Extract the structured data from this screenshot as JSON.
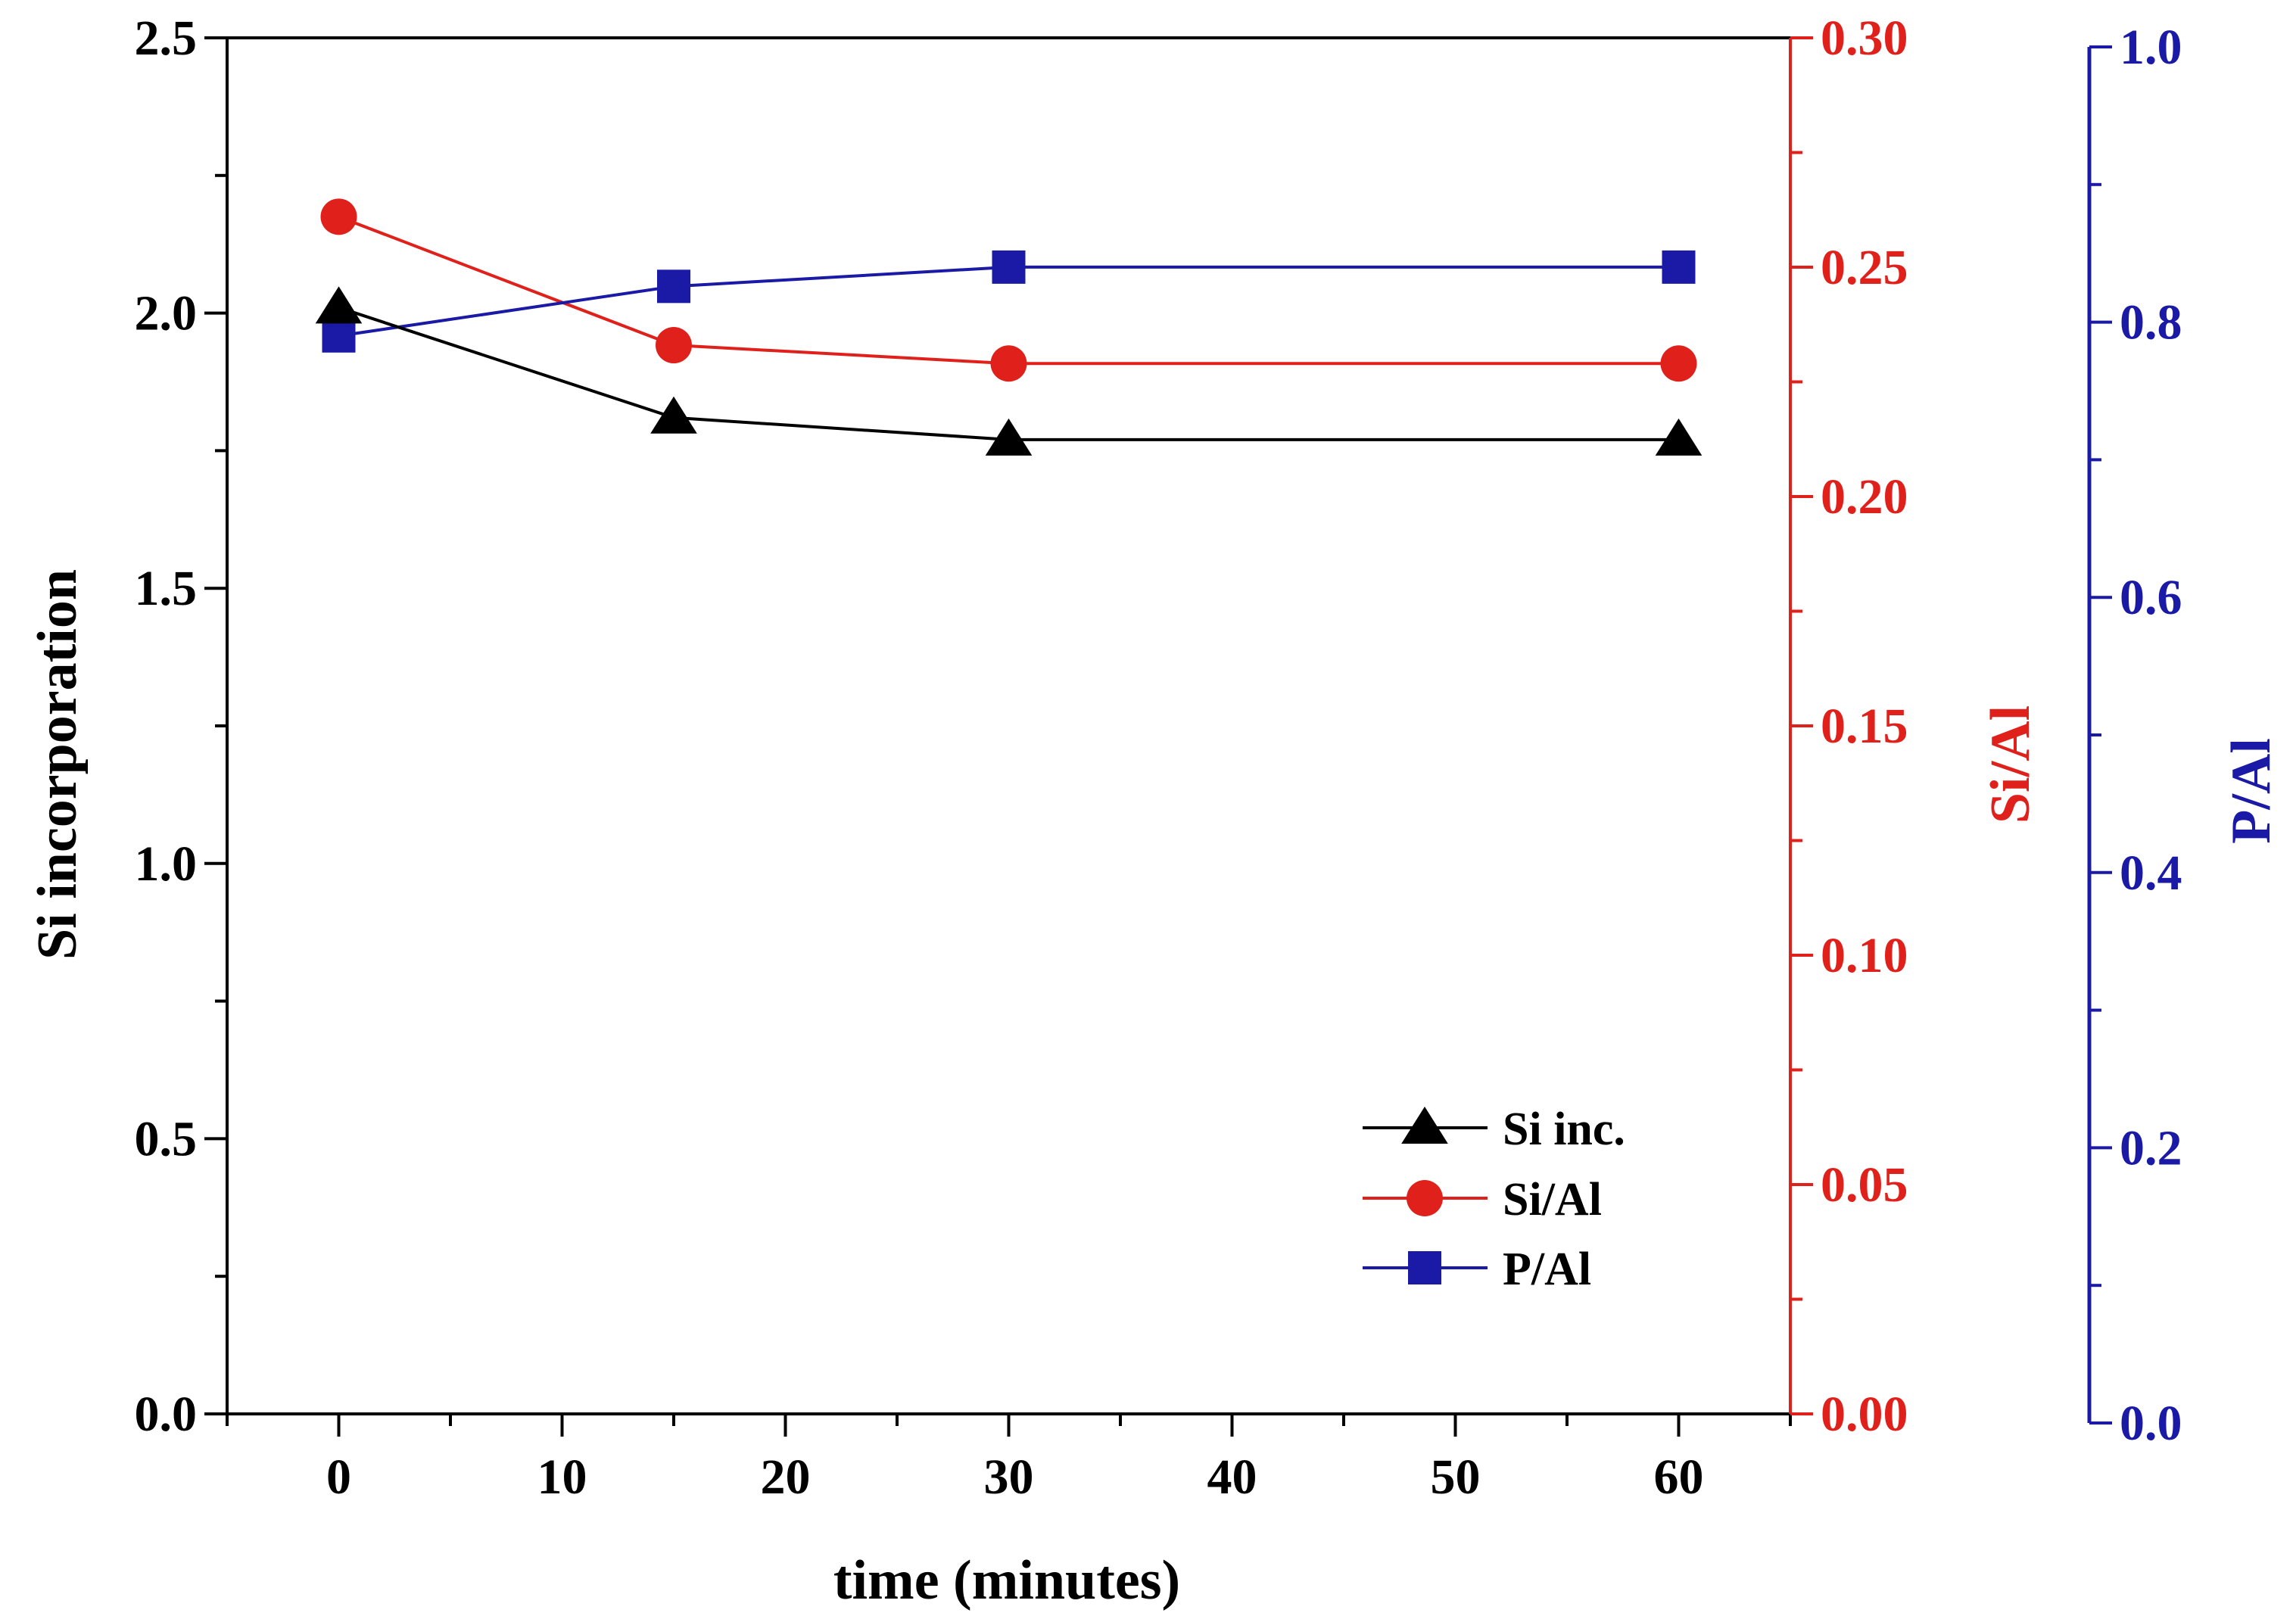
{
  "chart_data": {
    "type": "line",
    "title": "",
    "xlabel": "time (minutes)",
    "x": [
      0,
      15,
      30,
      60
    ],
    "xlim": [
      -5,
      65
    ],
    "xticks": [
      0,
      10,
      20,
      30,
      40,
      50,
      60
    ],
    "axes": {
      "left": {
        "label": "Si incorporation",
        "range": [
          0,
          2.5
        ],
        "ticks": [
          "0.0",
          "0.5",
          "1.0",
          "1.5",
          "2.0",
          "2.5"
        ],
        "color": "#000000"
      },
      "right1": {
        "label": "Si/Al",
        "range": [
          0,
          0.3
        ],
        "ticks": [
          "0.00",
          "0.05",
          "0.10",
          "0.15",
          "0.20",
          "0.25",
          "0.30"
        ],
        "color": "#e0201b"
      },
      "right2": {
        "label": "P/Al",
        "range": [
          0,
          1.0
        ],
        "ticks": [
          "0.0",
          "0.2",
          "0.4",
          "0.6",
          "0.8",
          "1.0"
        ],
        "color": "#1a1aa6"
      }
    },
    "series": [
      {
        "name": "Si inc.",
        "axis": "left",
        "marker": "triangle",
        "color": "#000000",
        "values": [
          2.01,
          1.81,
          1.77,
          1.77
        ]
      },
      {
        "name": "Si/Al",
        "axis": "right1",
        "marker": "circle",
        "color": "#e0201b",
        "values": [
          0.261,
          0.233,
          0.229,
          0.229
        ]
      },
      {
        "name": "P/Al",
        "axis": "right2",
        "marker": "square",
        "color": "#1a1aa6",
        "values": [
          0.79,
          0.826,
          0.84,
          0.84
        ]
      }
    ],
    "legend": {
      "position": "bottom-right",
      "entries": [
        "Si inc.",
        "Si/Al",
        "P/Al"
      ]
    },
    "grid": false
  }
}
